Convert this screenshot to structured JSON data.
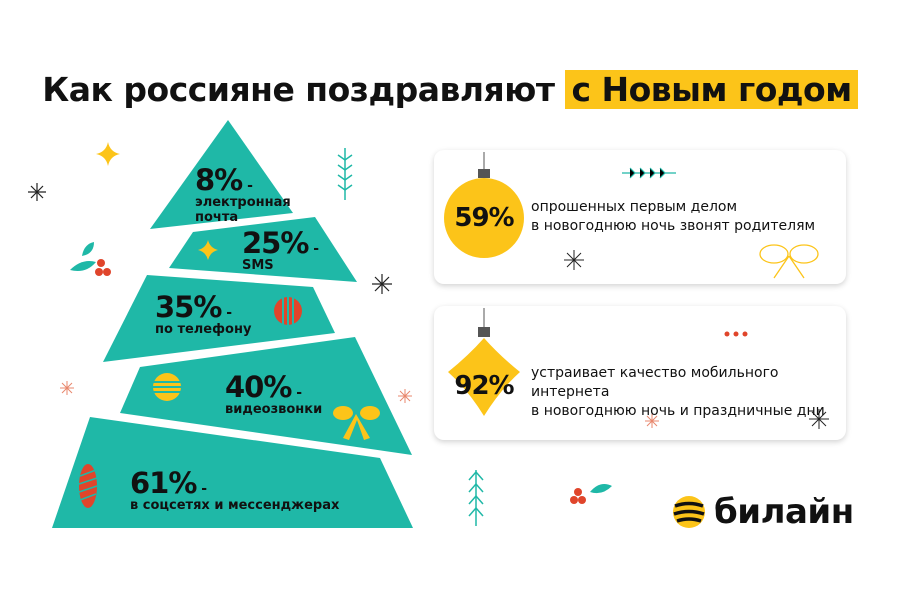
{
  "title": {
    "main": "Как россияне поздравляют",
    "highlight": "с Новым годом"
  },
  "tree": [
    {
      "percent": "8%",
      "label": "электронная почта"
    },
    {
      "percent": "25%",
      "label": "SMS"
    },
    {
      "percent": "35%",
      "label": "по телефону"
    },
    {
      "percent": "40%",
      "label": "видеозвонки"
    },
    {
      "percent": "61%",
      "label": "в соцсетях и мессенджерах"
    }
  ],
  "cards": [
    {
      "percent": "59%",
      "line1": "опрошенных первым делом",
      "line2": "в новогоднюю ночь звонят родителям"
    },
    {
      "percent": "92%",
      "line1": "устраивает качество мобильного интернета",
      "line2": "в новогоднюю ночь и праздничные дни"
    }
  ],
  "brand": {
    "name": "билайн"
  },
  "colors": {
    "teal": "#1fb8a7",
    "yellow": "#fcc419",
    "red": "#e0452b"
  }
}
